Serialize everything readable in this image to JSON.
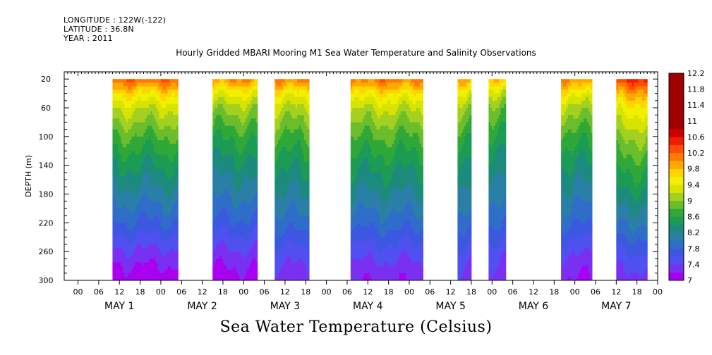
{
  "header": {
    "longitude": "LONGITUDE : 122W(-122)",
    "latitude": "LATITUDE : 36.8N",
    "year": "YEAR : 2011"
  },
  "title": "Hourly Gridded MBARI Mooring M1 Sea Water Temperature and Salinity Observations",
  "variable_label": "Sea Water Temperature (Celsius)",
  "colors": {
    "palette": [
      "#a800f0",
      "#7a30f0",
      "#5050f0",
      "#3c58e0",
      "#2f6ec8",
      "#2a7fa6",
      "#1c8a7c",
      "#1c9b54",
      "#30a838",
      "#6cbd2c",
      "#a4d020",
      "#d8e400",
      "#f0f000",
      "#ffd400",
      "#ffa800",
      "#ff7a00",
      "#ff4c00",
      "#f01e00",
      "#d00000",
      "#a00000"
    ]
  },
  "chart_data": {
    "type": "heatmap",
    "title": "Hourly Gridded MBARI Mooring M1 Sea Water Temperature and Salinity Observations",
    "xlabel": "",
    "ylabel": "DEPTH (m)",
    "colorbar_label": "Sea Water Temperature (Celsius)",
    "y_reversed": true,
    "ylim": [
      300,
      10
    ],
    "y_ticks": [
      "20",
      "60",
      "100",
      "140",
      "180",
      "220",
      "260",
      "300"
    ],
    "x_unit": "hours since May 1 00:00",
    "xlim": [
      -4,
      168
    ],
    "x_tick_labels": [
      "00",
      "06",
      "12",
      "18",
      "00",
      "06",
      "12",
      "18",
      "00",
      "06",
      "12",
      "18",
      "00",
      "06",
      "12",
      "18",
      "00",
      "06",
      "12",
      "18",
      "00",
      "06",
      "12",
      "18",
      "00",
      "06",
      "12",
      "18",
      "00",
      "06",
      "12",
      "18"
    ],
    "day_labels": [
      "MAY  1",
      "MAY  2",
      "MAY  3",
      "MAY  4",
      "MAY  5",
      "MAY  6",
      "MAY  7"
    ],
    "colorbar": {
      "levels": [
        7,
        7.2,
        7.4,
        7.6,
        7.8,
        8,
        8.2,
        8.4,
        8.6,
        8.8,
        9,
        9.2,
        9.4,
        9.6,
        9.8,
        10,
        10.2,
        10.4,
        10.6,
        10.8,
        11,
        11.2,
        11.4,
        11.6,
        11.8,
        12,
        12.2
      ],
      "labels": [
        "7",
        "7.4",
        "7.8",
        "8.2",
        "8.6",
        "9",
        "9.4",
        "9.8",
        "10.2",
        "10.6",
        "11",
        "11.4",
        "11.8",
        "12.2"
      ]
    },
    "depths": [
      20,
      40,
      60,
      80,
      100,
      120,
      140,
      160,
      180,
      200,
      220,
      240,
      260,
      280,
      300
    ],
    "profile_base": [
      9.9,
      9.35,
      9.0,
      8.8,
      8.6,
      8.45,
      8.3,
      8.18,
      8.05,
      7.92,
      7.78,
      7.6,
      7.42,
      7.28,
      7.18
    ],
    "data_segments": [
      {
        "start": 10,
        "end": 29,
        "surface_offset": 0.3,
        "deep_offset": -0.12
      },
      {
        "start": 39,
        "end": 52,
        "surface_offset": 0.1,
        "deep_offset": -0.08
      },
      {
        "start": 57,
        "end": 67,
        "surface_offset": 0.2,
        "deep_offset": 0.1
      },
      {
        "start": 79,
        "end": 100,
        "surface_offset": 0.25,
        "deep_offset": 0.05
      },
      {
        "start": 110,
        "end": 114,
        "surface_offset": 0.0,
        "deep_offset": 0.12
      },
      {
        "start": 119,
        "end": 124,
        "surface_offset": -0.15,
        "deep_offset": 0.1
      },
      {
        "start": 140,
        "end": 149,
        "surface_offset": 0.15,
        "deep_offset": 0.0
      },
      {
        "start": 156,
        "end": 165,
        "surface_offset": 0.55,
        "deep_offset": 0.12
      }
    ]
  }
}
